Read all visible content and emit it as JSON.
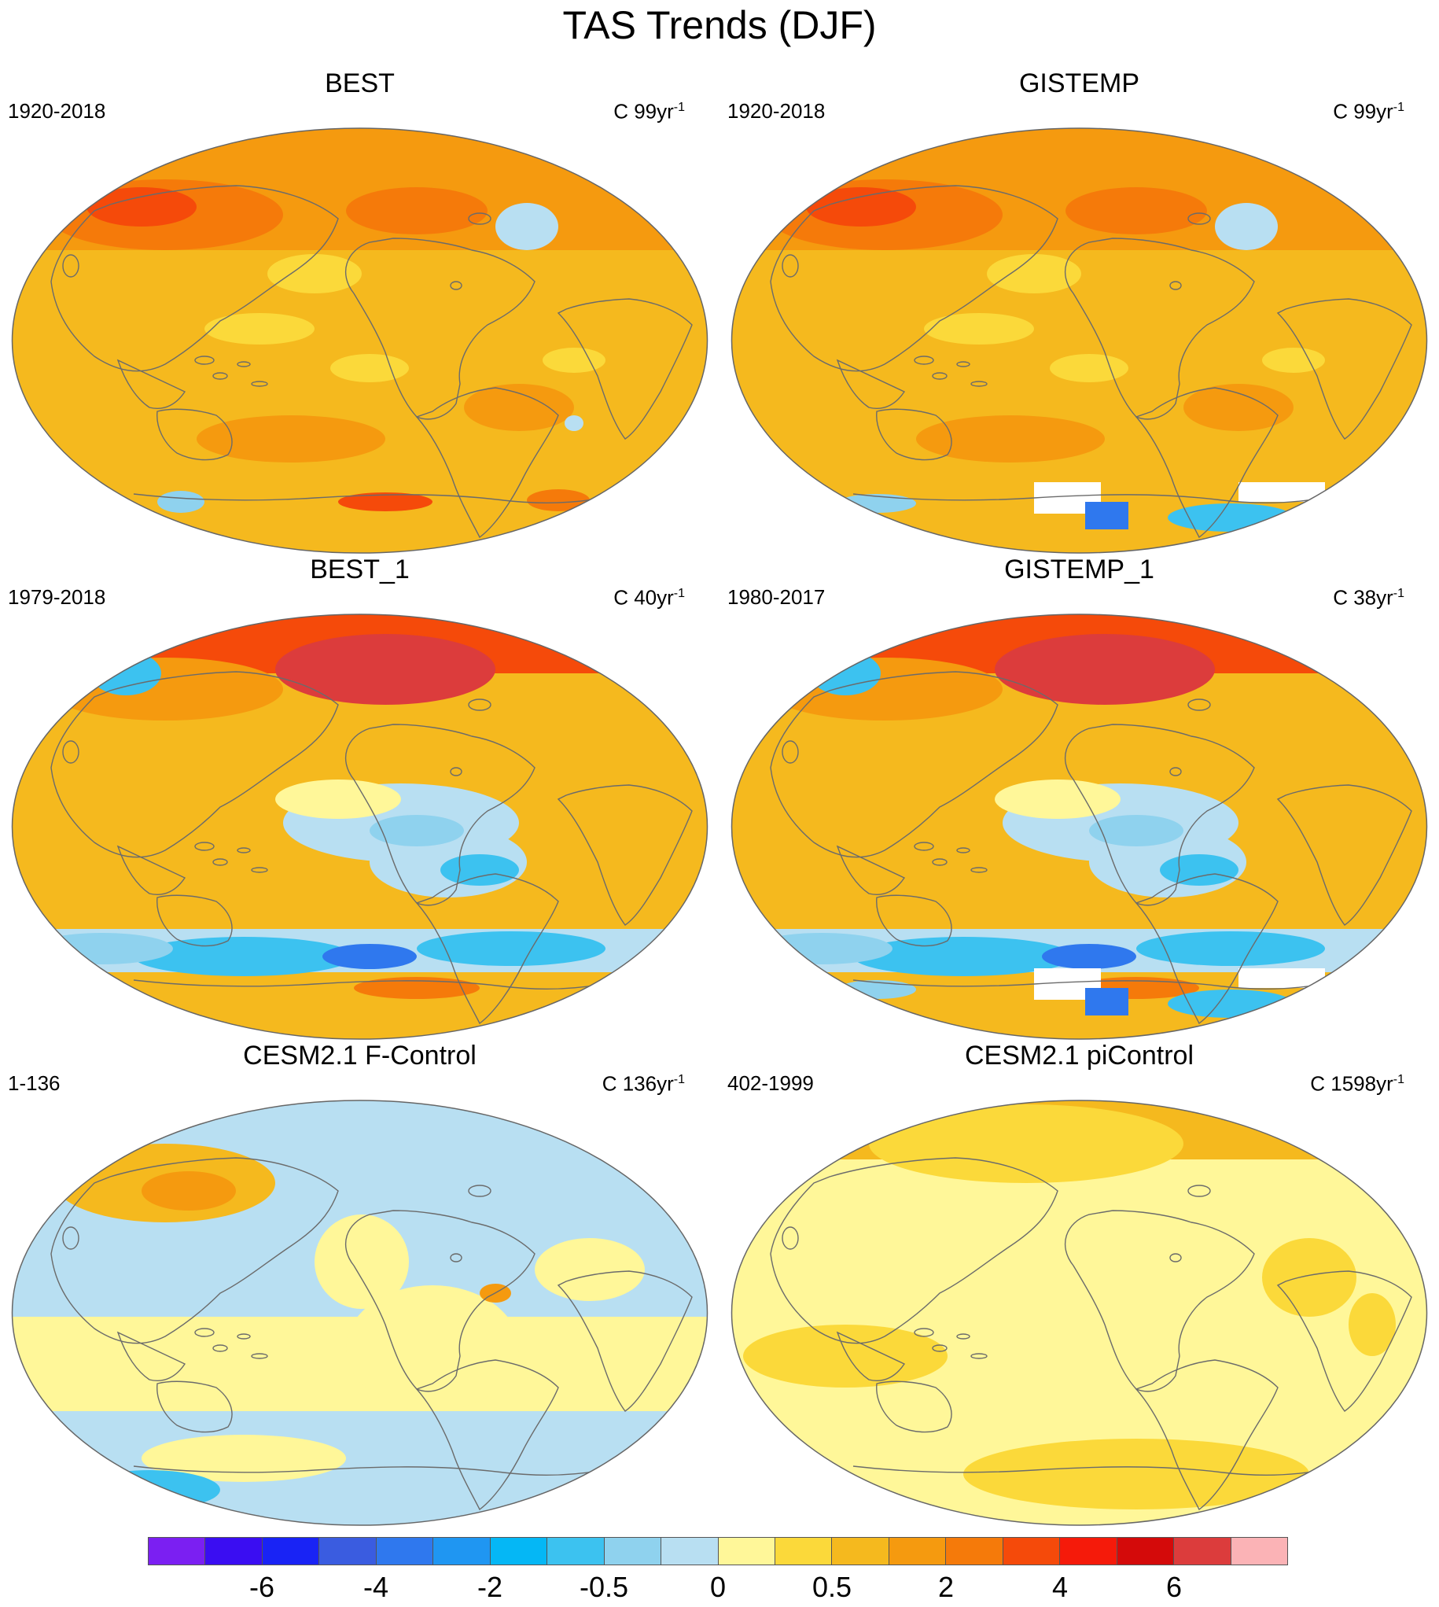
{
  "title": "TAS Trends (DJF)",
  "panels": [
    {
      "title": "BEST",
      "period": "1920-2018",
      "units": "C 99yr",
      "units_sup": "-1",
      "base_color": "#f5b91e",
      "features": [
        "warm-north",
        "mixed-south"
      ]
    },
    {
      "title": "GISTEMP",
      "period": "1920-2018",
      "units": "C 99yr",
      "units_sup": "-1",
      "base_color": "#f5b91e",
      "features": [
        "warm-north",
        "missing-antarctic"
      ]
    },
    {
      "title": "BEST_1",
      "period": "1979-2018",
      "units": "C 40yr",
      "units_sup": "-1",
      "base_color": "#f5b91e",
      "features": [
        "strong-arctic",
        "cool-pacific",
        "cool-southern"
      ]
    },
    {
      "title": "GISTEMP_1",
      "period": "1980-2017",
      "units": "C 38yr",
      "units_sup": "-1",
      "base_color": "#f5b91e",
      "features": [
        "strong-arctic",
        "cool-pacific",
        "cool-southern",
        "missing-antarctic"
      ]
    },
    {
      "title": "CESM2.1 F-Control",
      "period": "1-136",
      "units": "C 136yr",
      "units_sup": "-1",
      "base_color": "#b8dff2",
      "features": [
        "mixed-neutral"
      ]
    },
    {
      "title": "CESM2.1 piControl",
      "period": "402-1999",
      "units": "C 1598yr",
      "units_sup": "-1",
      "base_color": "#fff799",
      "features": [
        "near-zero"
      ]
    }
  ],
  "colorbar": {
    "colors": [
      "#7b1ff2",
      "#3a0df2",
      "#1923f5",
      "#3a5ce0",
      "#2f78ee",
      "#1f96f2",
      "#05b7f5",
      "#3cc2f0",
      "#8fd2ee",
      "#b8dff2",
      "#fff799",
      "#fbd93a",
      "#f5b91e",
      "#f59a0f",
      "#f57a0a",
      "#f54a0a",
      "#f51a0a",
      "#d40a0a",
      "#dc3c3c",
      "#fbb3b6"
    ],
    "labels": [
      "-6",
      "-4",
      "-2",
      "-0.5",
      "0",
      "0.5",
      "2",
      "4",
      "6"
    ]
  }
}
